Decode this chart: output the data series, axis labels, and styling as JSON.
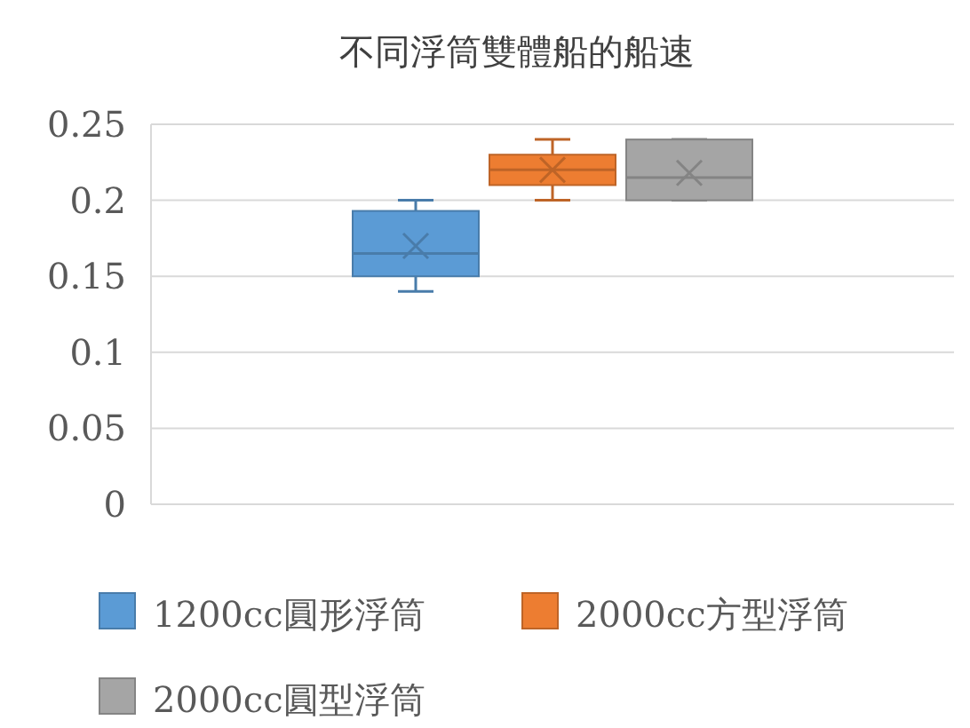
{
  "chart_data": {
    "type": "box",
    "title": "不同浮筒雙體船的船速",
    "categories": [
      null
    ],
    "ylim": [
      0,
      0.25
    ],
    "yticks": [
      0,
      0.05,
      0.1,
      0.15,
      0.2,
      0.25
    ],
    "grid": "y",
    "legend": "bottom",
    "series": [
      {
        "name": "1200cc圓形浮筒",
        "color": "#5b9bd5",
        "boxes": [
          {
            "low": 0.14,
            "q1": 0.15,
            "median": 0.165,
            "q3": 0.193,
            "high": 0.2,
            "mean": 0.17
          }
        ]
      },
      {
        "name": "2000cc方型浮筒",
        "color": "#ed7d31",
        "boxes": [
          {
            "low": 0.2,
            "q1": 0.21,
            "median": 0.22,
            "q3": 0.23,
            "high": 0.24,
            "mean": 0.22
          }
        ]
      },
      {
        "name": "2000cc圓型浮筒",
        "color": "#a5a5a5",
        "boxes": [
          {
            "low": 0.2,
            "q1": 0.2,
            "median": 0.215,
            "q3": 0.24,
            "high": 0.24,
            "mean": 0.218
          }
        ]
      }
    ]
  }
}
